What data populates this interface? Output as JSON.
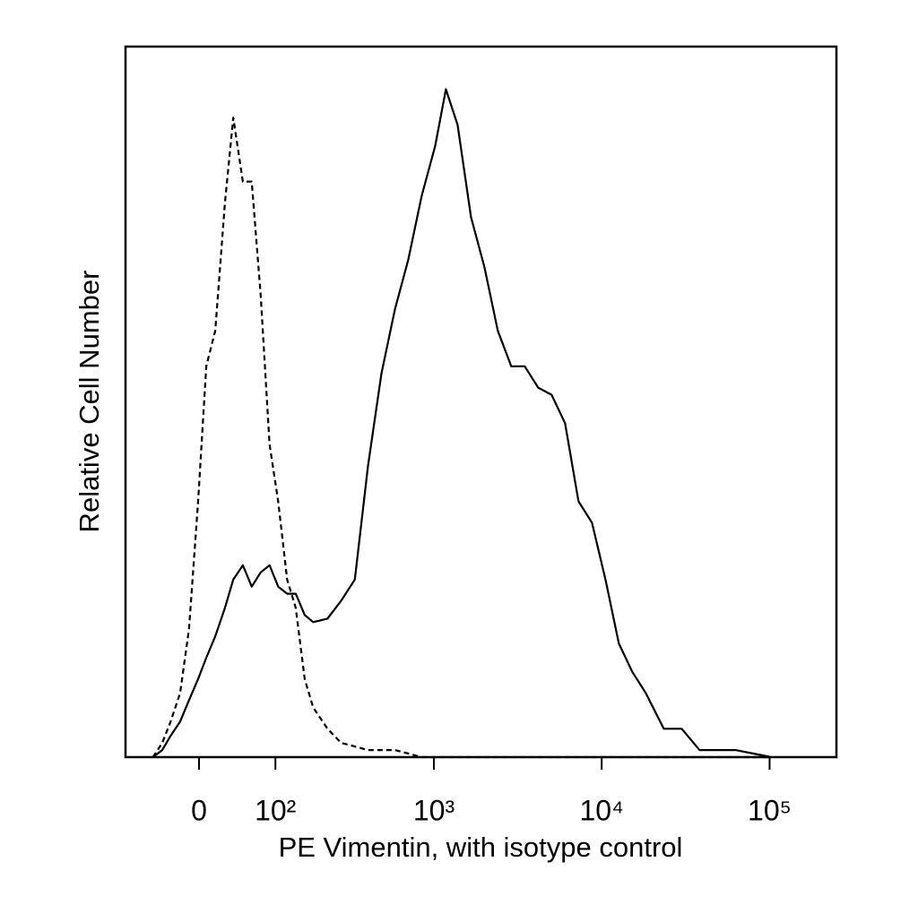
{
  "chart_data": {
    "type": "line",
    "x_label": "PE Vimentin, with isotype control",
    "y_label": "Relative Cell Number",
    "xscale": "logicle",
    "xlim": [
      -95,
      250000
    ],
    "ylim": [
      0,
      100
    ],
    "xticks": [
      0,
      {
        "value": 100,
        "label": "10²"
      },
      {
        "value": 1000,
        "label": "10³"
      },
      {
        "value": 10000,
        "label": "10⁴"
      },
      {
        "value": 100000,
        "label": "10⁵"
      }
    ],
    "x": [
      -54,
      -42,
      -32,
      -21,
      -11,
      -1,
      8,
      18,
      29,
      39,
      51,
      63,
      76,
      90,
      105,
      122,
      140,
      161,
      183,
      226,
      275,
      334,
      402,
      485,
      584,
      703,
      846,
      1018,
      1180,
      1385,
      1665,
      2000,
      2405,
      2895,
      3480,
      4185,
      5030,
      6055,
      7280,
      8755,
      10530,
      12660,
      15220,
      18310,
      23420,
      29950,
      38280,
      48960,
      62640,
      80000,
      102300
    ],
    "series": [
      {
        "color": "#000000",
        "line_style": "solid",
        "values": [
          0,
          1,
          3,
          5,
          8,
          11,
          14,
          17,
          21,
          25,
          27,
          24,
          26,
          27,
          24,
          23,
          23,
          20,
          19,
          19.5,
          22,
          25,
          41,
          54,
          63,
          70,
          79,
          86,
          94,
          89,
          76,
          69,
          60,
          55,
          55,
          52,
          51,
          47,
          36,
          33,
          25,
          16,
          12,
          9,
          4,
          4,
          1,
          1,
          1,
          0.5,
          0
        ]
      },
      {
        "color": "#000000",
        "line_style": "dashed",
        "values": [
          0,
          2,
          5,
          9,
          18,
          36,
          55,
          60,
          78,
          90,
          81,
          81,
          65,
          44,
          36,
          25,
          21,
          11,
          7,
          4,
          2,
          1.5,
          1,
          1,
          1,
          0.5,
          0,
          0,
          0,
          0,
          0,
          0,
          0,
          0,
          0,
          0,
          0,
          0,
          0,
          0,
          0,
          0,
          0,
          0,
          0,
          0,
          0,
          0,
          0,
          0,
          0
        ]
      }
    ]
  }
}
